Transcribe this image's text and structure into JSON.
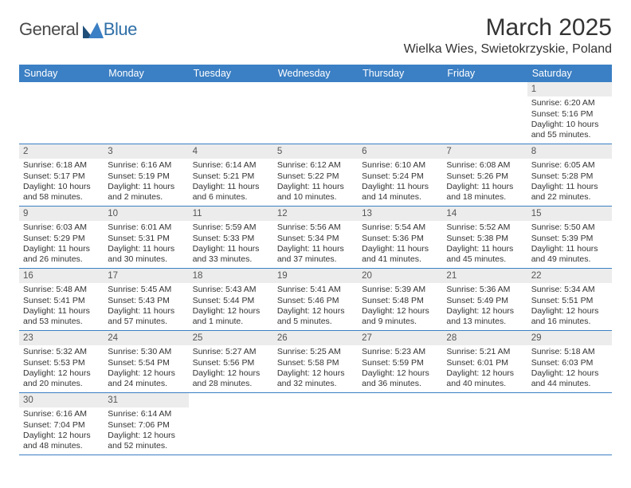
{
  "logo": {
    "general": "General",
    "blue": "Blue"
  },
  "title": "March 2025",
  "location": "Wielka Wies, Swietokrzyskie, Poland",
  "header_bg": "#3b7fc4",
  "daynum_bg": "#ececec",
  "weekdays": [
    "Sunday",
    "Monday",
    "Tuesday",
    "Wednesday",
    "Thursday",
    "Friday",
    "Saturday"
  ],
  "weeks": [
    [
      null,
      null,
      null,
      null,
      null,
      null,
      {
        "n": "1",
        "sr": "Sunrise: 6:20 AM",
        "ss": "Sunset: 5:16 PM",
        "d1": "Daylight: 10 hours",
        "d2": "and 55 minutes."
      }
    ],
    [
      {
        "n": "2",
        "sr": "Sunrise: 6:18 AM",
        "ss": "Sunset: 5:17 PM",
        "d1": "Daylight: 10 hours",
        "d2": "and 58 minutes."
      },
      {
        "n": "3",
        "sr": "Sunrise: 6:16 AM",
        "ss": "Sunset: 5:19 PM",
        "d1": "Daylight: 11 hours",
        "d2": "and 2 minutes."
      },
      {
        "n": "4",
        "sr": "Sunrise: 6:14 AM",
        "ss": "Sunset: 5:21 PM",
        "d1": "Daylight: 11 hours",
        "d2": "and 6 minutes."
      },
      {
        "n": "5",
        "sr": "Sunrise: 6:12 AM",
        "ss": "Sunset: 5:22 PM",
        "d1": "Daylight: 11 hours",
        "d2": "and 10 minutes."
      },
      {
        "n": "6",
        "sr": "Sunrise: 6:10 AM",
        "ss": "Sunset: 5:24 PM",
        "d1": "Daylight: 11 hours",
        "d2": "and 14 minutes."
      },
      {
        "n": "7",
        "sr": "Sunrise: 6:08 AM",
        "ss": "Sunset: 5:26 PM",
        "d1": "Daylight: 11 hours",
        "d2": "and 18 minutes."
      },
      {
        "n": "8",
        "sr": "Sunrise: 6:05 AM",
        "ss": "Sunset: 5:28 PM",
        "d1": "Daylight: 11 hours",
        "d2": "and 22 minutes."
      }
    ],
    [
      {
        "n": "9",
        "sr": "Sunrise: 6:03 AM",
        "ss": "Sunset: 5:29 PM",
        "d1": "Daylight: 11 hours",
        "d2": "and 26 minutes."
      },
      {
        "n": "10",
        "sr": "Sunrise: 6:01 AM",
        "ss": "Sunset: 5:31 PM",
        "d1": "Daylight: 11 hours",
        "d2": "and 30 minutes."
      },
      {
        "n": "11",
        "sr": "Sunrise: 5:59 AM",
        "ss": "Sunset: 5:33 PM",
        "d1": "Daylight: 11 hours",
        "d2": "and 33 minutes."
      },
      {
        "n": "12",
        "sr": "Sunrise: 5:56 AM",
        "ss": "Sunset: 5:34 PM",
        "d1": "Daylight: 11 hours",
        "d2": "and 37 minutes."
      },
      {
        "n": "13",
        "sr": "Sunrise: 5:54 AM",
        "ss": "Sunset: 5:36 PM",
        "d1": "Daylight: 11 hours",
        "d2": "and 41 minutes."
      },
      {
        "n": "14",
        "sr": "Sunrise: 5:52 AM",
        "ss": "Sunset: 5:38 PM",
        "d1": "Daylight: 11 hours",
        "d2": "and 45 minutes."
      },
      {
        "n": "15",
        "sr": "Sunrise: 5:50 AM",
        "ss": "Sunset: 5:39 PM",
        "d1": "Daylight: 11 hours",
        "d2": "and 49 minutes."
      }
    ],
    [
      {
        "n": "16",
        "sr": "Sunrise: 5:48 AM",
        "ss": "Sunset: 5:41 PM",
        "d1": "Daylight: 11 hours",
        "d2": "and 53 minutes."
      },
      {
        "n": "17",
        "sr": "Sunrise: 5:45 AM",
        "ss": "Sunset: 5:43 PM",
        "d1": "Daylight: 11 hours",
        "d2": "and 57 minutes."
      },
      {
        "n": "18",
        "sr": "Sunrise: 5:43 AM",
        "ss": "Sunset: 5:44 PM",
        "d1": "Daylight: 12 hours",
        "d2": "and 1 minute."
      },
      {
        "n": "19",
        "sr": "Sunrise: 5:41 AM",
        "ss": "Sunset: 5:46 PM",
        "d1": "Daylight: 12 hours",
        "d2": "and 5 minutes."
      },
      {
        "n": "20",
        "sr": "Sunrise: 5:39 AM",
        "ss": "Sunset: 5:48 PM",
        "d1": "Daylight: 12 hours",
        "d2": "and 9 minutes."
      },
      {
        "n": "21",
        "sr": "Sunrise: 5:36 AM",
        "ss": "Sunset: 5:49 PM",
        "d1": "Daylight: 12 hours",
        "d2": "and 13 minutes."
      },
      {
        "n": "22",
        "sr": "Sunrise: 5:34 AM",
        "ss": "Sunset: 5:51 PM",
        "d1": "Daylight: 12 hours",
        "d2": "and 16 minutes."
      }
    ],
    [
      {
        "n": "23",
        "sr": "Sunrise: 5:32 AM",
        "ss": "Sunset: 5:53 PM",
        "d1": "Daylight: 12 hours",
        "d2": "and 20 minutes."
      },
      {
        "n": "24",
        "sr": "Sunrise: 5:30 AM",
        "ss": "Sunset: 5:54 PM",
        "d1": "Daylight: 12 hours",
        "d2": "and 24 minutes."
      },
      {
        "n": "25",
        "sr": "Sunrise: 5:27 AM",
        "ss": "Sunset: 5:56 PM",
        "d1": "Daylight: 12 hours",
        "d2": "and 28 minutes."
      },
      {
        "n": "26",
        "sr": "Sunrise: 5:25 AM",
        "ss": "Sunset: 5:58 PM",
        "d1": "Daylight: 12 hours",
        "d2": "and 32 minutes."
      },
      {
        "n": "27",
        "sr": "Sunrise: 5:23 AM",
        "ss": "Sunset: 5:59 PM",
        "d1": "Daylight: 12 hours",
        "d2": "and 36 minutes."
      },
      {
        "n": "28",
        "sr": "Sunrise: 5:21 AM",
        "ss": "Sunset: 6:01 PM",
        "d1": "Daylight: 12 hours",
        "d2": "and 40 minutes."
      },
      {
        "n": "29",
        "sr": "Sunrise: 5:18 AM",
        "ss": "Sunset: 6:03 PM",
        "d1": "Daylight: 12 hours",
        "d2": "and 44 minutes."
      }
    ],
    [
      {
        "n": "30",
        "sr": "Sunrise: 6:16 AM",
        "ss": "Sunset: 7:04 PM",
        "d1": "Daylight: 12 hours",
        "d2": "and 48 minutes."
      },
      {
        "n": "31",
        "sr": "Sunrise: 6:14 AM",
        "ss": "Sunset: 7:06 PM",
        "d1": "Daylight: 12 hours",
        "d2": "and 52 minutes."
      },
      null,
      null,
      null,
      null,
      null
    ]
  ]
}
